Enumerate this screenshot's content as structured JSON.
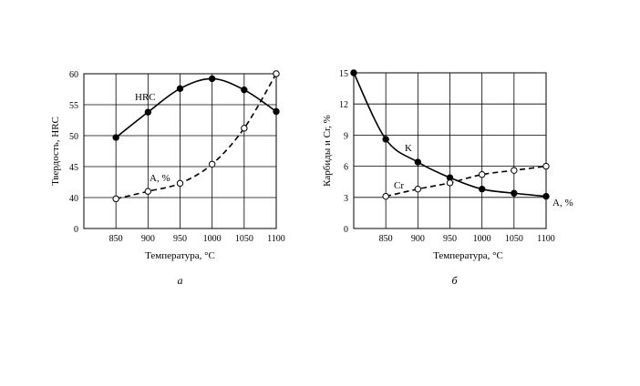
{
  "chart_data": [
    {
      "type": "line",
      "panel_label": "а",
      "xlabel": "Температура, °C",
      "ylabel": "Твердость, HRC",
      "x": [
        850,
        900,
        950,
        1000,
        1050,
        1100
      ],
      "x_ticks": [
        "850",
        "900",
        "950",
        "1000",
        "1050",
        "1100"
      ],
      "y_ticks": [
        "0",
        "40",
        "45",
        "50",
        "55",
        "60"
      ],
      "grid": true,
      "series": [
        {
          "name": "HRC",
          "style": "solid",
          "marker": "filled-circle",
          "values": [
            49.7,
            53.8,
            57.6,
            59.2,
            57.4,
            53.9
          ]
        },
        {
          "name": "А, %",
          "style": "dashed",
          "marker": "open-circle",
          "values": [
            39.8,
            41.0,
            42.3,
            45.4,
            51.2,
            60.0
          ]
        }
      ]
    },
    {
      "type": "line",
      "panel_label": "б",
      "xlabel": "Температура, °C",
      "ylabel": "Карбиды и Cr, %",
      "x_ticks": [
        "850",
        "900",
        "950",
        "1000",
        "1050",
        "1100"
      ],
      "y_ticks": [
        "0",
        "3",
        "6",
        "9",
        "12",
        "15"
      ],
      "ylim": [
        0,
        15
      ],
      "grid": true,
      "series": [
        {
          "name": "K",
          "style": "solid",
          "marker": "filled-circle",
          "x": [
            800,
            850,
            900,
            950,
            1000,
            1050,
            1100
          ],
          "values": [
            15.0,
            8.6,
            6.4,
            4.9,
            3.8,
            3.4,
            3.1
          ]
        },
        {
          "name": "Cr",
          "style": "dashed",
          "marker": "open-circle",
          "x": [
            850,
            900,
            950,
            1000,
            1050,
            1100
          ],
          "values": [
            3.1,
            3.8,
            4.4,
            5.2,
            5.6,
            6.0
          ]
        }
      ],
      "annotations": [
        "А, %"
      ]
    }
  ]
}
